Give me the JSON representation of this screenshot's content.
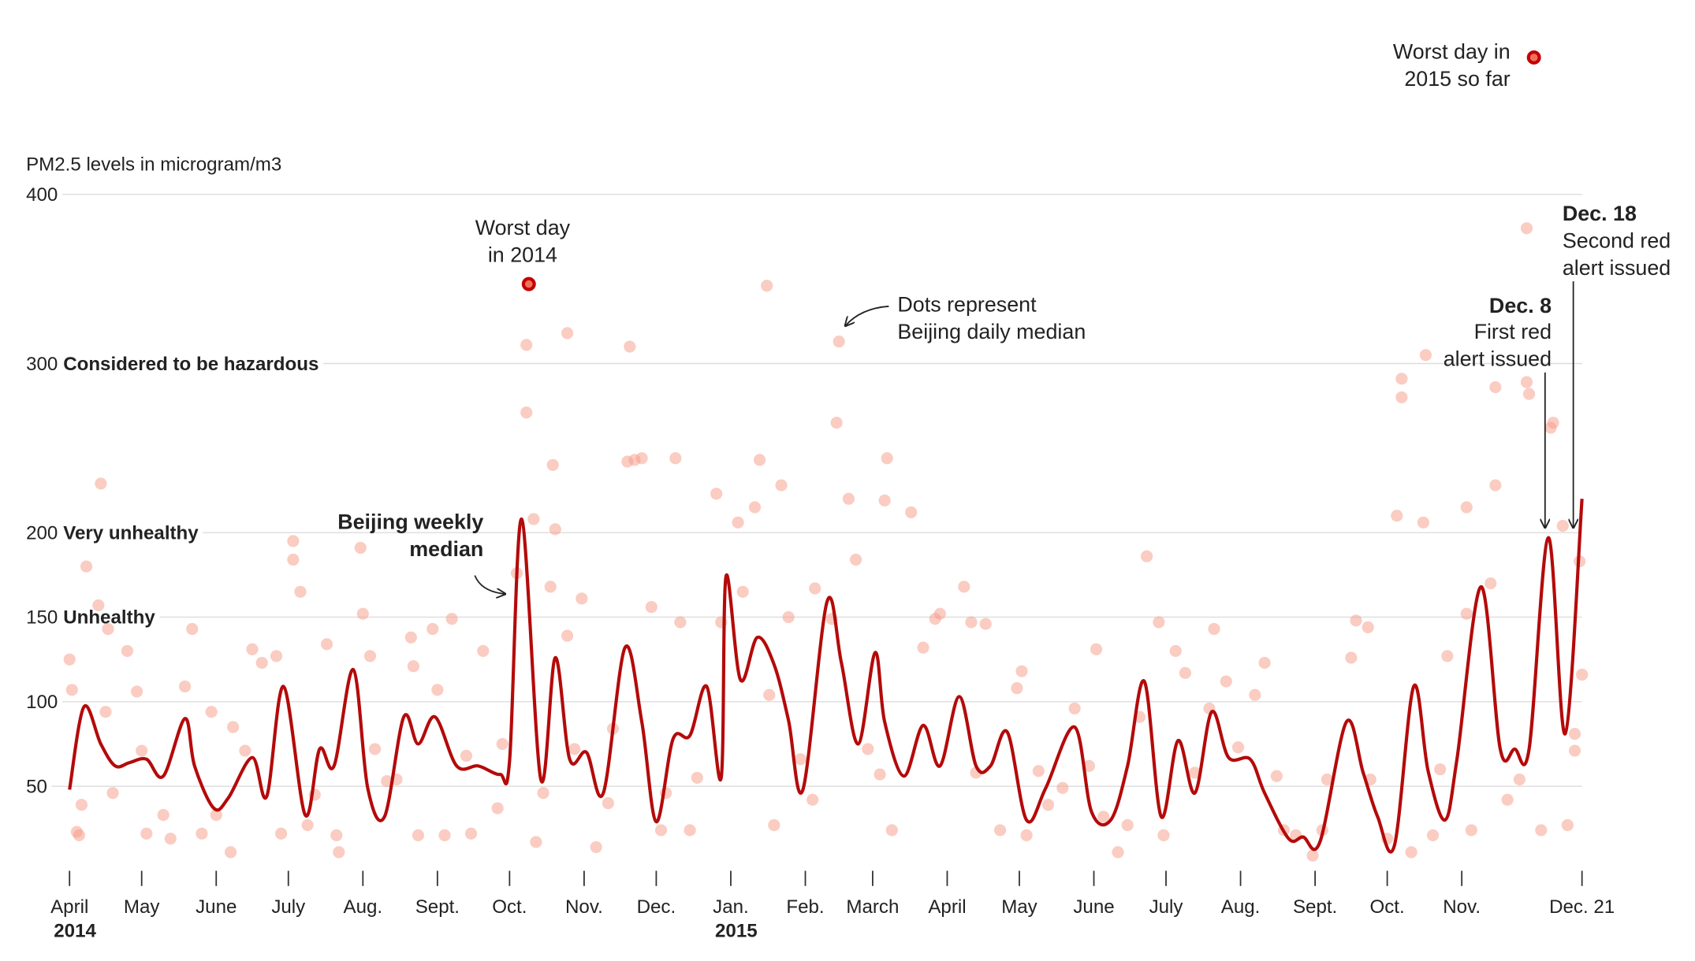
{
  "chart_data": {
    "type": "line",
    "ylabel": "PM2.5 levels in microgram/m3",
    "xlim": [
      0,
      629
    ],
    "ylim": [
      0,
      400
    ],
    "yticks": [
      50,
      100,
      150,
      200,
      300,
      400
    ],
    "ylevels": [
      {
        "value": 300,
        "label": "Considered to be hazardous"
      },
      {
        "value": 200,
        "label": "Very unhealthy"
      },
      {
        "value": 150,
        "label": "Unhealthy"
      }
    ],
    "xticks": [
      {
        "value": 0,
        "label": "April"
      },
      {
        "value": 30,
        "label": "May"
      },
      {
        "value": 61,
        "label": "June"
      },
      {
        "value": 91,
        "label": "July"
      },
      {
        "value": 122,
        "label": "Aug."
      },
      {
        "value": 153,
        "label": "Sept."
      },
      {
        "value": 183,
        "label": "Oct."
      },
      {
        "value": 214,
        "label": "Nov."
      },
      {
        "value": 244,
        "label": "Dec."
      },
      {
        "value": 275,
        "label": "Jan."
      },
      {
        "value": 306,
        "label": "Feb."
      },
      {
        "value": 334,
        "label": "March"
      },
      {
        "value": 365,
        "label": "April"
      },
      {
        "value": 395,
        "label": "May"
      },
      {
        "value": 426,
        "label": "June"
      },
      {
        "value": 456,
        "label": "July"
      },
      {
        "value": 487,
        "label": "Aug."
      },
      {
        "value": 518,
        "label": "Sept."
      },
      {
        "value": 548,
        "label": "Oct."
      },
      {
        "value": 579,
        "label": "Nov."
      },
      {
        "value": 629,
        "label": "Dec. 21"
      }
    ],
    "year_labels": [
      {
        "value": 0,
        "label": "2014"
      },
      {
        "value": 275,
        "label": "2015"
      }
    ],
    "series": [
      {
        "type": "scatter",
        "color": "#f59a86",
        "label": [
          "Dots represent",
          "Beijing daily median"
        ],
        "x": [
          0,
          1,
          3,
          4,
          5,
          7,
          13,
          15,
          12,
          16,
          18,
          24,
          28,
          30,
          32,
          39,
          42,
          48,
          51,
          55,
          59,
          61,
          67,
          68,
          73,
          76,
          80,
          86,
          88,
          93,
          93,
          96,
          99,
          102,
          107,
          111,
          112,
          121,
          122,
          125,
          127,
          132,
          136,
          142,
          143,
          145,
          151,
          153,
          156,
          159,
          165,
          167,
          172,
          178,
          180,
          186,
          190,
          190,
          193,
          194,
          197,
          200,
          201,
          202,
          207,
          207,
          210,
          213,
          219,
          224,
          226,
          233,
          232,
          235,
          238,
          242,
          246,
          248,
          252,
          254,
          258,
          261,
          269,
          271,
          278,
          280,
          285,
          287,
          290,
          291,
          293,
          296,
          299,
          304,
          309,
          310,
          317,
          320,
          319,
          324,
          327,
          332,
          337,
          340,
          339,
          350,
          342,
          355,
          360,
          362,
          372,
          375,
          377,
          381,
          387,
          394,
          396,
          398,
          403,
          407,
          413,
          418,
          424,
          427,
          430,
          436,
          440,
          445,
          448,
          453,
          455,
          460,
          464,
          468,
          474,
          476,
          481,
          486,
          493,
          497,
          502,
          505,
          510,
          517,
          521,
          523,
          533,
          535,
          540,
          541,
          548,
          552,
          554,
          554,
          558,
          563,
          564,
          567,
          570,
          573,
          581,
          581,
          583,
          591,
          593,
          593,
          598,
          603,
          606,
          607,
          606,
          612,
          616,
          617,
          621,
          623,
          626,
          628,
          629,
          626
        ],
        "values": [
          125,
          107,
          23,
          21,
          39,
          180,
          229,
          94,
          157,
          143,
          46,
          130,
          106,
          71,
          22,
          33,
          19,
          109,
          143,
          22,
          94,
          33,
          11,
          85,
          71,
          131,
          123,
          127,
          22,
          195,
          184,
          165,
          27,
          45,
          134,
          21,
          11,
          191,
          152,
          127,
          72,
          53,
          54,
          138,
          121,
          21,
          143,
          107,
          21,
          149,
          68,
          22,
          130,
          37,
          75,
          176,
          311,
          271,
          208,
          17,
          46,
          168,
          240,
          202,
          318,
          139,
          72,
          161,
          14,
          40,
          84,
          310,
          242,
          243,
          244,
          156,
          24,
          46,
          244,
          147,
          24,
          55,
          223,
          147,
          206,
          165,
          215,
          243,
          346,
          104,
          27,
          228,
          150,
          66,
          42,
          167,
          149,
          313,
          265,
          220,
          184,
          72,
          57,
          244,
          219,
          212,
          24,
          132,
          149,
          152,
          168,
          147,
          58,
          146,
          24,
          108,
          118,
          21,
          59,
          39,
          49,
          96,
          62,
          131,
          32,
          11,
          27,
          91,
          186,
          147,
          21,
          130,
          117,
          58,
          96,
          143,
          112,
          73,
          104,
          123,
          56,
          24,
          21,
          9,
          24,
          54,
          126,
          148,
          144,
          54,
          19,
          210,
          291,
          280,
          11,
          206,
          305,
          21,
          60,
          127,
          215,
          152,
          24,
          170,
          286,
          228,
          42,
          54,
          380,
          282,
          289,
          24,
          262,
          265,
          204,
          27,
          71,
          183,
          116,
          81
        ]
      },
      {
        "type": "line",
        "color": "#b40a0a",
        "label": [
          "Beijing weekly",
          "median"
        ],
        "x": [
          0,
          6,
          13,
          19,
          25,
          32,
          39,
          48,
          52,
          60,
          66,
          76,
          82,
          89,
          98,
          104,
          110,
          118,
          124,
          131,
          139,
          145,
          152,
          161,
          170,
          179,
          183,
          188,
          196,
          202,
          208,
          215,
          222,
          231,
          238,
          244,
          251,
          258,
          265,
          271,
          273,
          279,
          286,
          293,
          299,
          305,
          315,
          321,
          328,
          335,
          339,
          347,
          355,
          362,
          370,
          377,
          383,
          390,
          398,
          406,
          418,
          425,
          433,
          440,
          447,
          454,
          461,
          468,
          475,
          482,
          491,
          497,
          507,
          513,
          520,
          531,
          538,
          544,
          551,
          559,
          565,
          572,
          577,
          587,
          595,
          601,
          607,
          615,
          622,
          629
        ],
        "values": [
          48,
          97,
          75,
          62,
          64,
          66,
          56,
          90,
          62,
          37,
          43,
          67,
          44,
          109,
          33,
          72,
          62,
          119,
          49,
          32,
          91,
          75,
          91,
          62,
          62,
          57,
          65,
          208,
          54,
          126,
          66,
          70,
          46,
          132,
          88,
          29,
          78,
          80,
          109,
          55,
          174,
          113,
          138,
          122,
          89,
          48,
          159,
          123,
          75,
          129,
          88,
          56,
          86,
          62,
          103,
          62,
          62,
          82,
          30,
          49,
          85,
          35,
          30,
          62,
          112,
          32,
          77,
          46,
          94,
          67,
          66,
          46,
          19,
          20,
          17,
          88,
          58,
          32,
          15,
          109,
          59,
          30,
          66,
          168,
          72,
          72,
          72,
          197,
          81,
          220
        ]
      }
    ],
    "highlights": [
      {
        "x": 191,
        "value": 347,
        "label": [
          "Worst day",
          "in 2014"
        ]
      },
      {
        "x": 609,
        "value": 481,
        "label": [
          "Worst day in",
          "2015 so far"
        ]
      }
    ],
    "events": [
      {
        "title": "Dec. 8",
        "label": [
          "First red",
          "alert issued"
        ]
      },
      {
        "title": "Dec. 18",
        "label": [
          "Second red",
          "alert issued"
        ]
      }
    ]
  }
}
